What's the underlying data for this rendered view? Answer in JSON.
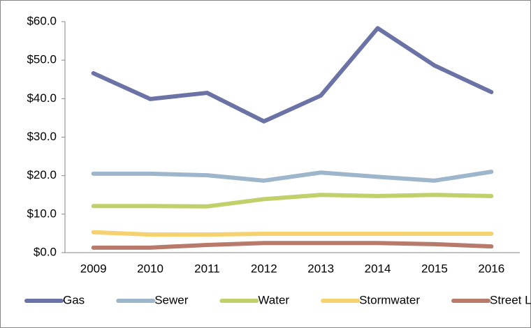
{
  "chart_data": {
    "type": "line",
    "categories": [
      "2009",
      "2010",
      "2011",
      "2012",
      "2013",
      "2014",
      "2015",
      "2016"
    ],
    "series": [
      {
        "name": "Gas",
        "color": "#6a72a6",
        "values": [
          46.6,
          39.9,
          41.5,
          34.1,
          40.8,
          58.3,
          48.6,
          41.7
        ]
      },
      {
        "name": "Sewer",
        "color": "#9db6cb",
        "values": [
          20.5,
          20.5,
          20.1,
          18.7,
          20.8,
          19.7,
          18.7,
          21.0
        ]
      },
      {
        "name": "Water",
        "color": "#c2d06b",
        "values": [
          12.1,
          12.1,
          12.0,
          13.9,
          15.0,
          14.7,
          15.0,
          14.7
        ]
      },
      {
        "name": "Stormwater",
        "color": "#f5d16f",
        "values": [
          5.3,
          4.7,
          4.7,
          4.9,
          4.9,
          4.9,
          4.9,
          4.9
        ]
      },
      {
        "name": "Street Lighting",
        "color": "#b87a6a",
        "values": [
          1.3,
          1.3,
          2.0,
          2.5,
          2.5,
          2.5,
          2.2,
          1.6
        ]
      }
    ],
    "ylim": [
      0,
      60
    ],
    "yticks": [
      {
        "value": 0,
        "label": "$0.0"
      },
      {
        "value": 10,
        "label": "$10.0"
      },
      {
        "value": 20,
        "label": "$20.0"
      },
      {
        "value": 30,
        "label": "$30.0"
      },
      {
        "value": 40,
        "label": "$40.0"
      },
      {
        "value": 50,
        "label": "$50.0"
      },
      {
        "value": 60,
        "label": "$60.0"
      }
    ],
    "grid": false,
    "legend": "bottom"
  }
}
